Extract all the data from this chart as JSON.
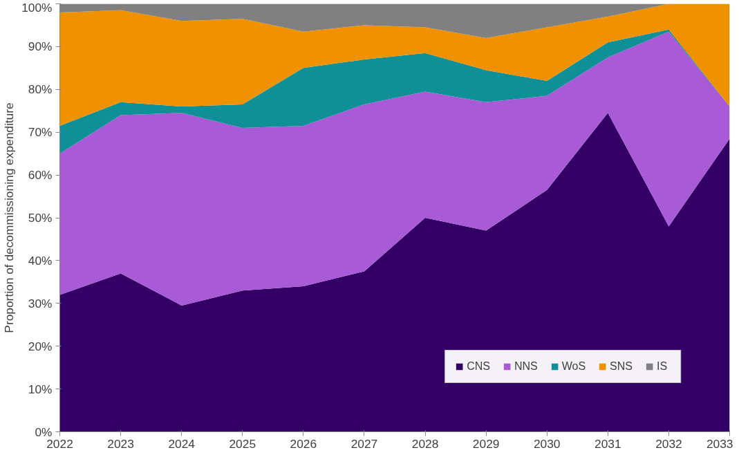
{
  "chart_data": {
    "type": "area",
    "stacked": true,
    "ylabel": "Proportion of decommissioning expenditure",
    "x": [
      2022,
      2023,
      2024,
      2025,
      2026,
      2027,
      2028,
      2029,
      2030,
      2031,
      2032,
      2033
    ],
    "series": [
      {
        "name": "CNS",
        "color": "#330066",
        "values": [
          32,
          37,
          29.5,
          33,
          34,
          37.5,
          50,
          47,
          56.5,
          74.5,
          48,
          68.5
        ]
      },
      {
        "name": "NNS",
        "color": "#a95ad6",
        "values": [
          33,
          37,
          45,
          38,
          37.5,
          39,
          29.5,
          30,
          22,
          13,
          45.5,
          7.5
        ]
      },
      {
        "name": "WoS",
        "color": "#0f8f96",
        "values": [
          6.5,
          3,
          1.5,
          5.5,
          13.5,
          10.5,
          9,
          7.5,
          3.5,
          3.5,
          0.5,
          0
        ]
      },
      {
        "name": "SNS",
        "color": "#f09100",
        "values": [
          26.5,
          21.5,
          20,
          20,
          8.5,
          8,
          6,
          7.5,
          12.5,
          6,
          6,
          24
        ]
      },
      {
        "name": "IS",
        "color": "#808080",
        "values": [
          2,
          1.5,
          4,
          3.5,
          6.5,
          5,
          5.5,
          8,
          5.5,
          3,
          0,
          0
        ]
      }
    ],
    "xlim": [
      2022,
      2033
    ],
    "xticks": [
      2022,
      2023,
      2024,
      2025,
      2026,
      2027,
      2028,
      2029,
      2030,
      2031,
      2032,
      2033
    ],
    "ylim": [
      0,
      100
    ],
    "yticks": [
      {
        "value": 0,
        "label": "0%"
      },
      {
        "value": 10,
        "label": "10%"
      },
      {
        "value": 20,
        "label": "20%"
      },
      {
        "value": 30,
        "label": "30%"
      },
      {
        "value": 40,
        "label": "40%"
      },
      {
        "value": 50,
        "label": "50%"
      },
      {
        "value": 60,
        "label": "60%"
      },
      {
        "value": 70,
        "label": "70%"
      },
      {
        "value": 80,
        "label": "80%"
      },
      {
        "value": 90,
        "label": "90%"
      },
      {
        "value": 100,
        "label": "100%"
      }
    ],
    "grid": false,
    "legend": "bottom right"
  }
}
